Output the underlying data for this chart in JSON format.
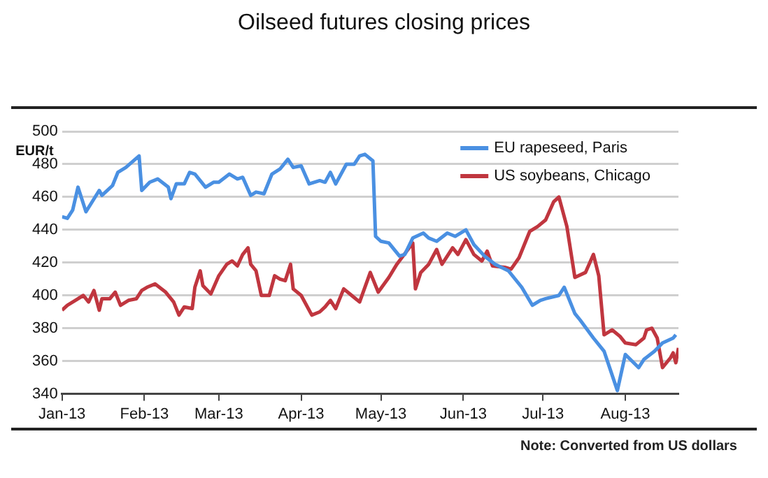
{
  "chart_data": {
    "type": "line",
    "title": "Oilseed futures closing prices",
    "ylabel": "EUR/t",
    "annotations": [
      "Note: Converted from US dollars"
    ],
    "xlim": [
      "2013-01-01",
      "2013-08-21"
    ],
    "xticks": [
      {
        "value": "2013-01-01",
        "label": "Jan-13"
      },
      {
        "value": "2013-02-01",
        "label": "Feb-13"
      },
      {
        "value": "2013-03-01",
        "label": "Mar-13"
      },
      {
        "value": "2013-04-01",
        "label": "Apr-13"
      },
      {
        "value": "2013-05-01",
        "label": "May-13"
      },
      {
        "value": "2013-06-01",
        "label": "Jun-13"
      },
      {
        "value": "2013-07-01",
        "label": "Jul-13"
      },
      {
        "value": "2013-08-01",
        "label": "Aug-13"
      }
    ],
    "ylim": [
      340,
      500
    ],
    "yticks": [
      340,
      360,
      380,
      400,
      420,
      440,
      460,
      480,
      500
    ],
    "grid": "y",
    "legend": "top right",
    "marker": "none",
    "line_style": "solid",
    "series": [
      {
        "name": "EU rapeseed, Paris",
        "color": "#4a90e2",
        "x": [
          "2013-01-01",
          "2013-01-03",
          "2013-01-05",
          "2013-01-07",
          "2013-01-10",
          "2013-01-15",
          "2013-01-16",
          "2013-01-20",
          "2013-01-22",
          "2013-01-25",
          "2013-01-30",
          "2013-01-31",
          "2013-02-03",
          "2013-02-06",
          "2013-02-10",
          "2013-02-11",
          "2013-02-13",
          "2013-02-16",
          "2013-02-18",
          "2013-02-20",
          "2013-02-24",
          "2013-02-27",
          "2013-03-01",
          "2013-03-05",
          "2013-03-08",
          "2013-03-10",
          "2013-03-13",
          "2013-03-15",
          "2013-03-18",
          "2013-03-21",
          "2013-03-24",
          "2013-03-27",
          "2013-03-29",
          "2013-04-01",
          "2013-04-04",
          "2013-04-08",
          "2013-04-10",
          "2013-04-12",
          "2013-04-14",
          "2013-04-18",
          "2013-04-21",
          "2013-04-23",
          "2013-04-25",
          "2013-04-28",
          "2013-04-29",
          "2013-05-01",
          "2013-05-04",
          "2013-05-08",
          "2013-05-10",
          "2013-05-13",
          "2013-05-17",
          "2013-05-19",
          "2013-05-22",
          "2013-05-26",
          "2013-05-29",
          "2013-06-02",
          "2013-06-05",
          "2013-06-09",
          "2013-06-13",
          "2013-06-18",
          "2013-06-23",
          "2013-06-27",
          "2013-06-30",
          "2013-07-02",
          "2013-07-07",
          "2013-07-09",
          "2013-07-13",
          "2013-07-15",
          "2013-07-20",
          "2013-07-24",
          "2013-07-29",
          "2013-08-01",
          "2013-08-06",
          "2013-08-08",
          "2013-08-12",
          "2013-08-15",
          "2013-08-19",
          "2013-08-20"
        ],
        "values": [
          448,
          447,
          452,
          466,
          451,
          464,
          461,
          467,
          475,
          478,
          485,
          464,
          469,
          471,
          466,
          459,
          468,
          468,
          475,
          474,
          466,
          469,
          469,
          474,
          471,
          472,
          461,
          463,
          462,
          474,
          477,
          483,
          478,
          479,
          468,
          470,
          469,
          475,
          468,
          480,
          480,
          485,
          486,
          482,
          436,
          433,
          432,
          424,
          425,
          435,
          438,
          435,
          433,
          438,
          436,
          440,
          431,
          424,
          419,
          415,
          405,
          394,
          397,
          398,
          400,
          405,
          389,
          385,
          374,
          366,
          342,
          364,
          356,
          361,
          366,
          371,
          374,
          376
        ]
      },
      {
        "name": "US soybeans, Chicago",
        "color": "#c0363f",
        "x": [
          "2013-01-01",
          "2013-01-03",
          "2013-01-06",
          "2013-01-09",
          "2013-01-11",
          "2013-01-13",
          "2013-01-15",
          "2013-01-16",
          "2013-01-19",
          "2013-01-21",
          "2013-01-23",
          "2013-01-26",
          "2013-01-29",
          "2013-01-31",
          "2013-02-02",
          "2013-02-05",
          "2013-02-09",
          "2013-02-12",
          "2013-02-14",
          "2013-02-16",
          "2013-02-19",
          "2013-02-20",
          "2013-02-22",
          "2013-02-23",
          "2013-02-26",
          "2013-03-01",
          "2013-03-04",
          "2013-03-06",
          "2013-03-08",
          "2013-03-10",
          "2013-03-12",
          "2013-03-13",
          "2013-03-15",
          "2013-03-17",
          "2013-03-20",
          "2013-03-22",
          "2013-03-24",
          "2013-03-26",
          "2013-03-28",
          "2013-03-29",
          "2013-04-01",
          "2013-04-05",
          "2013-04-08",
          "2013-04-10",
          "2013-04-12",
          "2013-04-14",
          "2013-04-17",
          "2013-04-20",
          "2013-04-23",
          "2013-04-27",
          "2013-04-30",
          "2013-05-04",
          "2013-05-07",
          "2013-05-13",
          "2013-05-14",
          "2013-05-16",
          "2013-05-19",
          "2013-05-22",
          "2013-05-24",
          "2013-05-28",
          "2013-05-30",
          "2013-06-02",
          "2013-06-05",
          "2013-06-08",
          "2013-06-10",
          "2013-06-12",
          "2013-06-17",
          "2013-06-19",
          "2013-06-22",
          "2013-06-26",
          "2013-06-29",
          "2013-07-02",
          "2013-07-05",
          "2013-07-07",
          "2013-07-10",
          "2013-07-13",
          "2013-07-17",
          "2013-07-20",
          "2013-07-22",
          "2013-07-24",
          "2013-07-27",
          "2013-07-30",
          "2013-08-01",
          "2013-08-05",
          "2013-08-08",
          "2013-08-09",
          "2013-08-11",
          "2013-08-13",
          "2013-08-15",
          "2013-08-18",
          "2013-08-19",
          "2013-08-20",
          "2013-08-21"
        ],
        "values": [
          391,
          394,
          397,
          400,
          396,
          403,
          391,
          398,
          398,
          402,
          394,
          397,
          398,
          403,
          405,
          407,
          402,
          396,
          388,
          393,
          392,
          405,
          415,
          406,
          401,
          412,
          419,
          421,
          418,
          425,
          429,
          419,
          415,
          400,
          400,
          412,
          410,
          409,
          419,
          404,
          400,
          388,
          390,
          393,
          397,
          392,
          404,
          400,
          396,
          414,
          402,
          411,
          419,
          432,
          404,
          414,
          419,
          428,
          419,
          429,
          425,
          434,
          425,
          421,
          427,
          418,
          417,
          416,
          423,
          439,
          442,
          446,
          457,
          460,
          442,
          411,
          414,
          425,
          412,
          376,
          379,
          375,
          371,
          370,
          374,
          379,
          380,
          374,
          356,
          362,
          365,
          359,
          368
        ]
      }
    ]
  }
}
